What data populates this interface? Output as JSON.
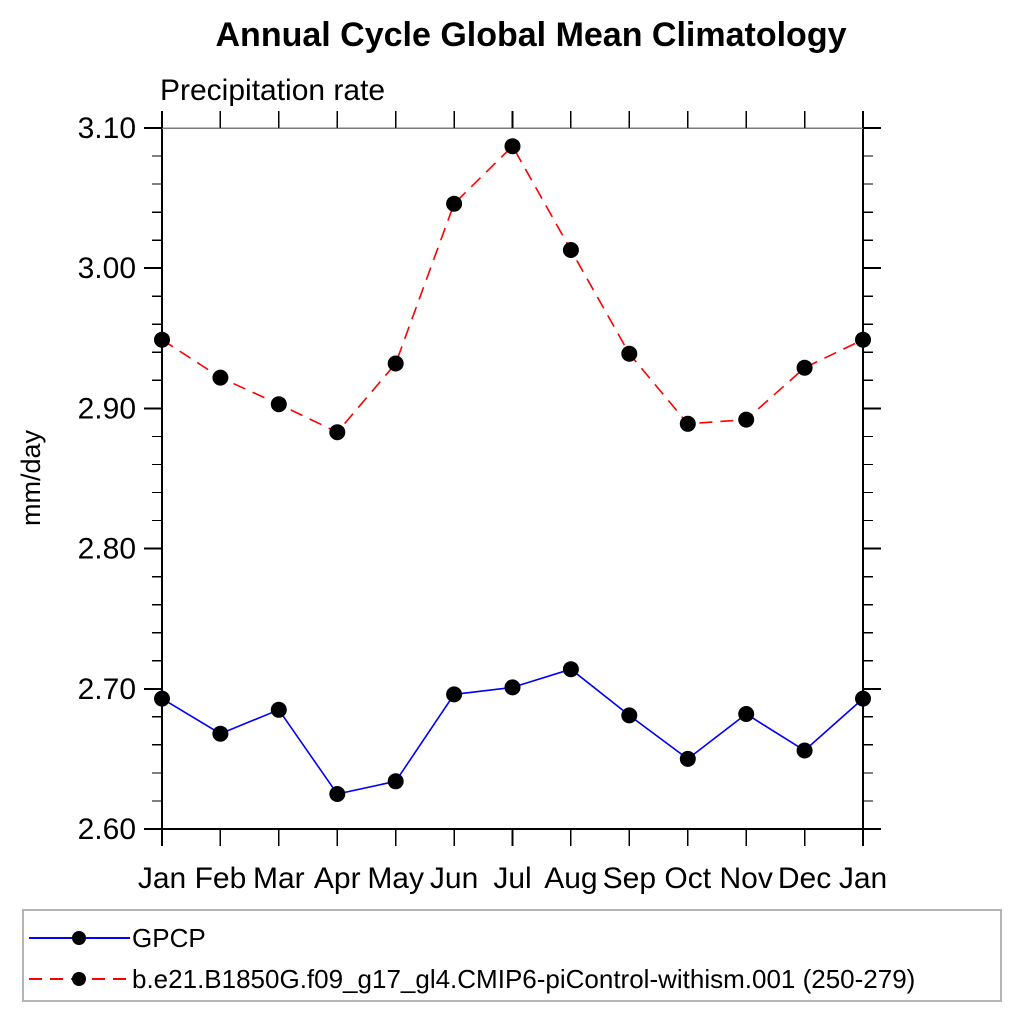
{
  "page": {
    "background": "#ffffff"
  },
  "colors": {
    "axis": "#000000",
    "top_border": "#7b7b7b",
    "legend_border": "#b4b4b4",
    "text": "#000000",
    "gpcp_line": "#0000ff",
    "model_line": "#ff0000",
    "marker": "#000000"
  },
  "chart_data": {
    "type": "line",
    "title": "Annual Cycle Global Mean Climatology",
    "subtitle": "Precipitation rate",
    "ylabel": "mm/day",
    "x_categories": [
      "Jan",
      "Feb",
      "Mar",
      "Apr",
      "May",
      "Jun",
      "Jul",
      "Aug",
      "Sep",
      "Oct",
      "Nov",
      "Dec",
      "Jan"
    ],
    "ylim": [
      2.6,
      3.1
    ],
    "ytick_labels": [
      "2.60",
      "2.70",
      "2.80",
      "2.90",
      "3.00",
      "3.10"
    ],
    "ytick_minor_step": 0.02,
    "grid": false,
    "legend_position": "bottom-left framed box",
    "series": [
      {
        "name": "GPCP",
        "color": "#0000ff",
        "line_style": "solid",
        "marker": "filled-circle",
        "marker_color": "#000000",
        "values": [
          2.693,
          2.668,
          2.685,
          2.625,
          2.634,
          2.696,
          2.701,
          2.714,
          2.681,
          2.65,
          2.682,
          2.656,
          2.693
        ]
      },
      {
        "name": "b.e21.B1850G.f09_g17_gl4.CMIP6-piControl-withism.001 (250-279)",
        "color": "#ff0000",
        "line_style": "dashed",
        "marker": "filled-circle",
        "marker_color": "#000000",
        "values": [
          2.949,
          2.922,
          2.903,
          2.883,
          2.932,
          3.046,
          3.087,
          3.013,
          2.939,
          2.889,
          2.892,
          2.929,
          2.949
        ]
      }
    ]
  }
}
